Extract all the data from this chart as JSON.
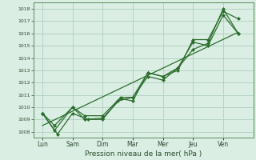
{
  "xlabel": "Pression niveau de la mer( hPa )",
  "background_color": "#daeee4",
  "grid_color": "#aecfbf",
  "line_color": "#2d6e2d",
  "ylim": [
    1007.5,
    1018.5
  ],
  "yticks": [
    1008,
    1009,
    1010,
    1011,
    1012,
    1013,
    1014,
    1015,
    1016,
    1017,
    1018
  ],
  "x_labels": [
    "Lun",
    "Sam",
    "Dim",
    "Mar",
    "Mer",
    "Jeu",
    "Ven"
  ],
  "x_positions": [
    0,
    1,
    2,
    3,
    4,
    5,
    6
  ],
  "xlim": [
    -0.3,
    7.0
  ],
  "line1_x": [
    0.0,
    0.4,
    1.0,
    1.4,
    2.0,
    2.6,
    3.0,
    3.5,
    4.0,
    4.5,
    5.0,
    5.5,
    6.0,
    6.5
  ],
  "line1_y": [
    1009.5,
    1008.1,
    1010.0,
    1009.0,
    1009.1,
    1010.7,
    1010.5,
    1012.8,
    1012.5,
    1013.0,
    1015.5,
    1015.5,
    1017.8,
    1017.2
  ],
  "line2_x": [
    0.0,
    0.4,
    1.0,
    1.4,
    2.0,
    2.6,
    3.0,
    3.5,
    4.0,
    4.5,
    5.0,
    5.5,
    6.0,
    6.5
  ],
  "line2_y": [
    1009.5,
    1008.5,
    1010.0,
    1009.3,
    1009.3,
    1010.8,
    1010.8,
    1012.5,
    1012.2,
    1013.2,
    1014.7,
    1015.2,
    1018.0,
    1016.0
  ],
  "line3_x": [
    0.0,
    0.5,
    1.0,
    1.5,
    2.0,
    2.5,
    3.0,
    3.5,
    4.0,
    4.5,
    5.0,
    5.5,
    6.0,
    6.5
  ],
  "line3_y": [
    1009.5,
    1007.8,
    1009.5,
    1009.0,
    1009.0,
    1010.5,
    1010.8,
    1012.8,
    1012.5,
    1013.2,
    1015.3,
    1015.0,
    1017.5,
    1016.0
  ],
  "trend_x": [
    0.0,
    6.5
  ],
  "trend_y": [
    1008.5,
    1016.1
  ]
}
